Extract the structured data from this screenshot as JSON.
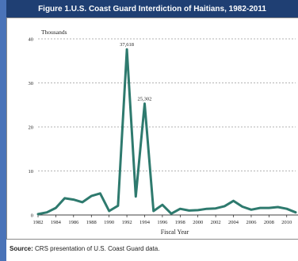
{
  "figure_title": "Figure 1.U.S. Coast Guard Interdiction of Haitians, 1982-2011",
  "source_label": "Source:",
  "source_text": "CRS presentation of U.S. Coast Guard data.",
  "colors": {
    "accent": "#4a73b8",
    "title_bg": "#1f3f73",
    "line": "#2e7a6e"
  },
  "chart_data": {
    "type": "line",
    "ylabel": "Thousands",
    "xlabel": "Fiscal Year",
    "ylim": [
      0,
      40
    ],
    "yticks": [
      0,
      10,
      20,
      30,
      40
    ],
    "xticks": [
      1982,
      1984,
      1986,
      1988,
      1990,
      1992,
      1994,
      1996,
      1998,
      2000,
      2002,
      2004,
      2006,
      2008,
      2010
    ],
    "grid": true,
    "x": [
      1982,
      1983,
      1984,
      1985,
      1986,
      1987,
      1988,
      1989,
      1990,
      1991,
      1992,
      1993,
      1994,
      1995,
      1996,
      1997,
      1998,
      1999,
      2000,
      2001,
      2002,
      2003,
      2004,
      2005,
      2006,
      2007,
      2008,
      2009,
      2010,
      2011
    ],
    "series": [
      {
        "values": [
          0.2,
          0.6,
          1.6,
          3.8,
          3.5,
          2.9,
          4.3,
          4.9,
          0.9,
          2.1,
          37.6,
          4.2,
          25.3,
          0.9,
          2.3,
          0.3,
          1.4,
          1.0,
          1.1,
          1.4,
          1.5,
          2.0,
          3.2,
          1.9,
          1.2,
          1.6,
          1.6,
          1.8,
          1.4,
          0.6
        ]
      }
    ],
    "annotations": [
      {
        "x": 1992,
        "y": 37.618,
        "text": "37,618"
      },
      {
        "x": 1994,
        "y": 25.302,
        "text": "25,302"
      }
    ]
  }
}
